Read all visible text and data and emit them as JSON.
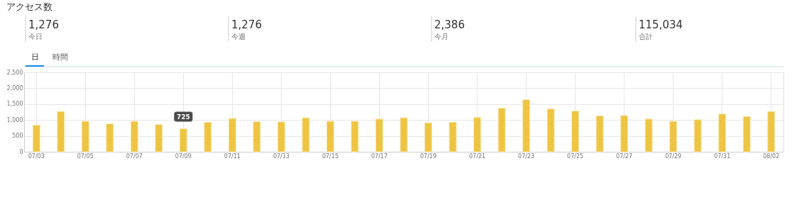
{
  "chart_data": {
    "type": "bar",
    "title": "アクセス数",
    "categories": [
      "07/03",
      null,
      "07/05",
      null,
      "07/07",
      null,
      "07/09",
      null,
      "07/11",
      null,
      "07/13",
      null,
      "07/15",
      null,
      "07/17",
      null,
      "07/19",
      null,
      "07/21",
      null,
      "07/23",
      null,
      "07/25",
      null,
      "07/27",
      null,
      "07/29",
      null,
      "07/31",
      null,
      "08/02"
    ],
    "values": [
      840,
      1270,
      960,
      880,
      960,
      860,
      725,
      930,
      1050,
      950,
      940,
      1070,
      960,
      960,
      1030,
      1070,
      910,
      930,
      1080,
      1370,
      1640,
      1350,
      1280,
      1130,
      1140,
      1030,
      960,
      1010,
      1190,
      1110,
      1270
    ],
    "color": "#eec443",
    "ylim": [
      0,
      2500
    ],
    "yticks": [
      0,
      500,
      {
        "value": 1000,
        "label": "1,000"
      },
      {
        "value": 1500,
        "label": "1,500"
      },
      {
        "value": 2000,
        "label": "2,000"
      },
      {
        "value": 2500,
        "label": "2,500"
      }
    ],
    "grid": true,
    "annotations": [
      "1,276",
      "今日",
      "1,276",
      "今週",
      "2,386",
      "今月",
      "115,034",
      "合計",
      "日",
      "時間",
      {
        "text": "725",
        "x": "07/09",
        "y": 725
      }
    ]
  }
}
